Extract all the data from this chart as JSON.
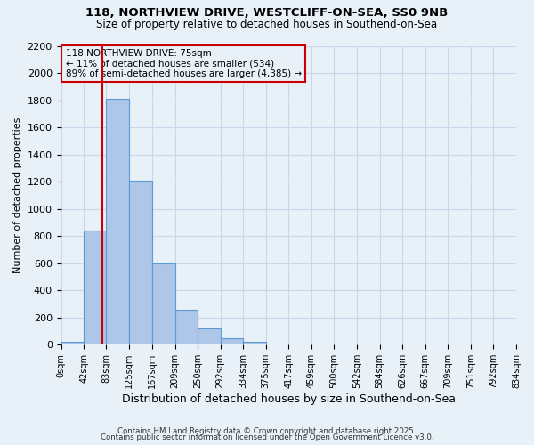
{
  "title1": "118, NORTHVIEW DRIVE, WESTCLIFF-ON-SEA, SS0 9NB",
  "title2": "Size of property relative to detached houses in Southend-on-Sea",
  "xlabel": "Distribution of detached houses by size in Southend-on-Sea",
  "ylabel": "Number of detached properties",
  "bin_edges": [
    0,
    42,
    83,
    125,
    167,
    209,
    250,
    292,
    334,
    375,
    417,
    459,
    500,
    542,
    584,
    626,
    667,
    709,
    751,
    792,
    834
  ],
  "bin_counts": [
    20,
    840,
    1810,
    1210,
    600,
    255,
    120,
    45,
    22,
    5,
    2,
    0,
    0,
    0,
    0,
    0,
    0,
    0,
    0,
    0
  ],
  "bar_color": "#aec6e8",
  "bar_edgecolor": "#5b9bd5",
  "property_size": 75,
  "vline_color": "#cc0000",
  "annotation_line1": "118 NORTHVIEW DRIVE: 75sqm",
  "annotation_line2": "← 11% of detached houses are smaller (534)",
  "annotation_line3": "89% of semi-detached houses are larger (4,385) →",
  "annotation_box_edgecolor": "#cc0000",
  "ylim": [
    0,
    2200
  ],
  "yticks": [
    0,
    200,
    400,
    600,
    800,
    1000,
    1200,
    1400,
    1600,
    1800,
    2000,
    2200
  ],
  "grid_color": "#c8d8e8",
  "background_color": "#e8f0f8",
  "footer1": "Contains HM Land Registry data © Crown copyright and database right 2025.",
  "footer2": "Contains public sector information licensed under the Open Government Licence v3.0."
}
